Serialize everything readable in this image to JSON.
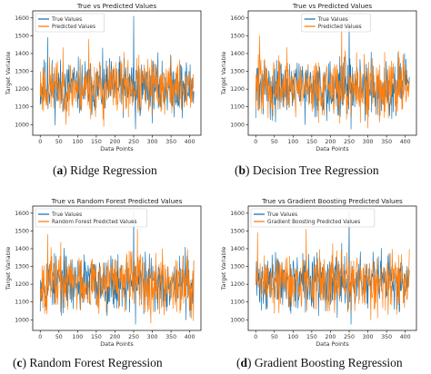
{
  "colors": {
    "true": "#1f77b4",
    "pred": "#ff7f0e"
  },
  "captions": [
    {
      "letter": "a",
      "text": "Ridge Regression"
    },
    {
      "letter": "b",
      "text": "Decision Tree Regression"
    },
    {
      "letter": "c",
      "text": "Random Forest Regression"
    },
    {
      "letter": "d",
      "text": "Gradient Boosting Regression"
    }
  ],
  "chart_data": [
    {
      "type": "line",
      "title": "True vs Predicted Values",
      "xlabel": "Data Points",
      "ylabel": "Target Variable",
      "xlim": [
        -20,
        430
      ],
      "ylim": [
        940,
        1640
      ],
      "xticks": [
        0,
        50,
        100,
        150,
        200,
        250,
        300,
        350,
        400
      ],
      "yticks": [
        1000,
        1100,
        1200,
        1300,
        1400,
        1500,
        1600
      ],
      "legend": "top-left",
      "series": [
        {
          "name": "True Values",
          "seed": 11,
          "n": 412,
          "mean": 1210,
          "amp": 150,
          "spikes": [
            [
              250,
              1610
            ],
            [
              255,
              975
            ],
            [
              20,
              1490
            ]
          ]
        },
        {
          "name": "Predicted Values",
          "seed": 23,
          "n": 412,
          "mean": 1210,
          "amp": 155,
          "spikes": [
            [
              130,
              1480
            ],
            [
              170,
              990
            ]
          ]
        }
      ]
    },
    {
      "type": "line",
      "title": "True vs Predicted Values",
      "xlabel": "Data Points",
      "ylabel": "Target Variable",
      "xlim": [
        -20,
        430
      ],
      "ylim": [
        940,
        1640
      ],
      "xticks": [
        0,
        50,
        100,
        150,
        200,
        250,
        300,
        350,
        400
      ],
      "yticks": [
        1000,
        1100,
        1200,
        1300,
        1400,
        1500,
        1600
      ],
      "legend": "top-center",
      "series": [
        {
          "name": "True Values",
          "seed": 31,
          "n": 412,
          "mean": 1210,
          "amp": 150,
          "spikes": [
            [
              250,
              1610
            ],
            [
              255,
              975
            ]
          ]
        },
        {
          "name": "Predicted Values",
          "seed": 47,
          "n": 412,
          "mean": 1215,
          "amp": 170,
          "spikes": [
            [
              10,
              1500
            ],
            [
              230,
              1570
            ],
            [
              300,
              980
            ]
          ]
        }
      ]
    },
    {
      "type": "line",
      "title": "True vs Random Forest Predicted Values",
      "xlabel": "Data Points",
      "ylabel": "Target Variable",
      "xlim": [
        -20,
        430
      ],
      "ylim": [
        940,
        1640
      ],
      "xticks": [
        0,
        50,
        100,
        150,
        200,
        250,
        300,
        350,
        400
      ],
      "yticks": [
        1000,
        1100,
        1200,
        1300,
        1400,
        1500,
        1600
      ],
      "legend": "top-left",
      "series": [
        {
          "name": "True Values",
          "seed": 53,
          "n": 412,
          "mean": 1210,
          "amp": 150,
          "spikes": [
            [
              250,
              1610
            ],
            [
              255,
              975
            ]
          ]
        },
        {
          "name": "Random Forest Predicted Values",
          "seed": 67,
          "n": 412,
          "mean": 1215,
          "amp": 160,
          "spikes": [
            [
              20,
              1480
            ],
            [
              260,
              1510
            ]
          ]
        }
      ]
    },
    {
      "type": "line",
      "title": "True vs Gradient Boosting Predicted Values",
      "xlabel": "Data Points",
      "ylabel": "Target Variable",
      "xlim": [
        -20,
        430
      ],
      "ylim": [
        940,
        1640
      ],
      "xticks": [
        0,
        50,
        100,
        150,
        200,
        250,
        300,
        350,
        400
      ],
      "yticks": [
        1000,
        1100,
        1200,
        1300,
        1400,
        1500,
        1600
      ],
      "legend": "top-left",
      "series": [
        {
          "name": "True Values",
          "seed": 71,
          "n": 412,
          "mean": 1210,
          "amp": 150,
          "spikes": [
            [
              250,
              1610
            ],
            [
              255,
              975
            ]
          ]
        },
        {
          "name": "Gradient Boosting Predicted Values",
          "seed": 89,
          "n": 412,
          "mean": 1215,
          "amp": 160,
          "spikes": [
            [
              5,
              1490
            ],
            [
              135,
              1510
            ]
          ]
        }
      ]
    }
  ]
}
